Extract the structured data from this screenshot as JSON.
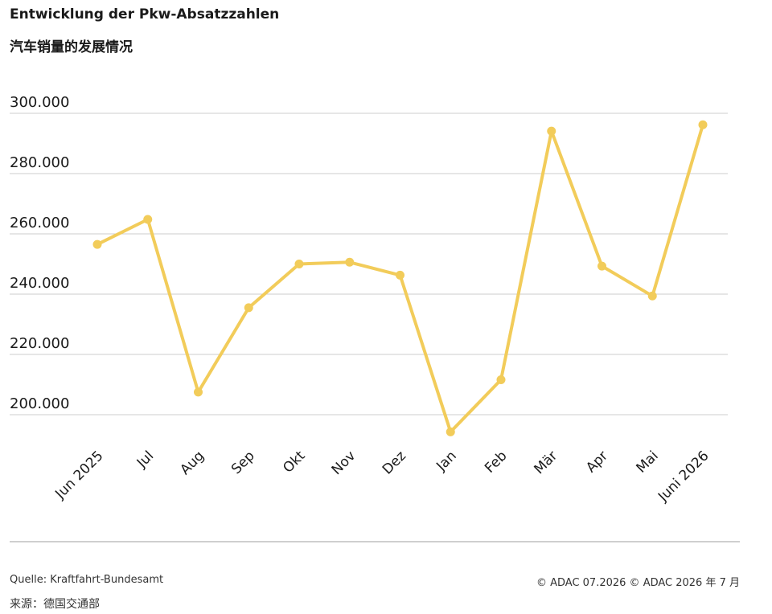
{
  "header": {
    "title": "Entwicklung der Pkw-Absatzzahlen",
    "subtitle": "汽车销量的发展情况"
  },
  "footer": {
    "source": "Quelle: Kraftfahrt-Bundesamt",
    "source_cn": "来源：德国交通部",
    "copyright": "© ADAC 07.2026  © ADAC 2026 年 7 月"
  },
  "colors": {
    "line": "#f2cc5a",
    "grid": "#cccccc",
    "divider": "#cfcfcf"
  },
  "chart_data": {
    "type": "line",
    "categories": [
      "Jun 2025",
      "Jul",
      "Aug",
      "Sep",
      "Okt",
      "Nov",
      "Dez",
      "Jan",
      "Feb",
      "Mär",
      "Apr",
      "Mai",
      "Juni 2026"
    ],
    "series": [
      {
        "values": [
          256500,
          264800,
          207500,
          235500,
          250000,
          250600,
          246300,
          194300,
          211600,
          294100,
          249300,
          239400,
          296200
        ]
      }
    ],
    "yticks": [
      200000,
      220000,
      240000,
      260000,
      280000,
      300000
    ],
    "ytick_labels": [
      "200.000",
      "220.000",
      "240.000",
      "260.000",
      "280.000",
      "300.000"
    ],
    "ylim": [
      200000,
      300000
    ],
    "grid": true,
    "legend": "none"
  }
}
